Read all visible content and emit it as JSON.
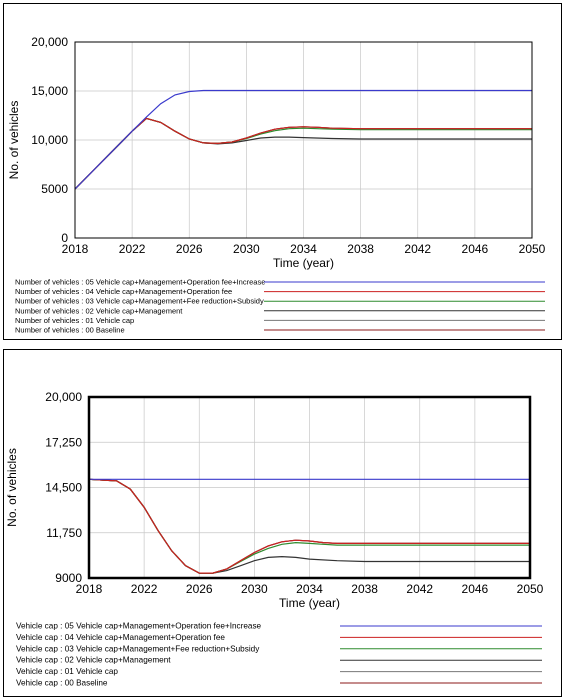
{
  "chart_data": [
    {
      "type": "line",
      "xlabel": "Time (year)",
      "ylabel": "No. of vehicles",
      "xlim": [
        2018,
        2050
      ],
      "ylim": [
        0,
        20000
      ],
      "x_ticks": [
        2018,
        2022,
        2026,
        2030,
        2034,
        2038,
        2042,
        2046,
        2050
      ],
      "y_ticks": [
        {
          "value": 0,
          "label": "0"
        },
        {
          "value": 5000,
          "label": "5000"
        },
        {
          "value": 10000,
          "label": "10,000"
        },
        {
          "value": 15000,
          "label": "15,000"
        },
        {
          "value": 20000,
          "label": "20,000"
        }
      ],
      "grid": true,
      "legend_position": "bottom",
      "series": [
        {
          "name": "Number of vehicles : 05 Vehicle cap+Management+Operation fee+Increase",
          "color": "#3a3acc",
          "points": [
            [
              2018,
              5000
            ],
            [
              2020,
              7950
            ],
            [
              2022,
              10900
            ],
            [
              2023,
              12350
            ],
            [
              2024,
              13700
            ],
            [
              2025,
              14600
            ],
            [
              2026,
              14950
            ],
            [
              2027,
              15050
            ],
            [
              2028,
              15050
            ],
            [
              2050,
              15050
            ]
          ]
        },
        {
          "name": "Number of vehicles : 04 Vehicle cap+Management+Operation fee",
          "color": "#cc2020",
          "points": [
            [
              2018,
              5000
            ],
            [
              2020,
              7950
            ],
            [
              2022,
              10900
            ],
            [
              2023,
              12200
            ],
            [
              2024,
              11800
            ],
            [
              2025,
              10900
            ],
            [
              2026,
              10100
            ],
            [
              2027,
              9700
            ],
            [
              2028,
              9650
            ],
            [
              2029,
              9800
            ],
            [
              2030,
              10200
            ],
            [
              2031,
              10700
            ],
            [
              2032,
              11100
            ],
            [
              2033,
              11300
            ],
            [
              2034,
              11350
            ],
            [
              2035,
              11300
            ],
            [
              2036,
              11200
            ],
            [
              2038,
              11150
            ],
            [
              2050,
              11150
            ]
          ]
        },
        {
          "name": "Number of vehicles : 03 Vehicle cap+Management+Fee reduction+Subsidy",
          "color": "#2e8b2e",
          "points": [
            [
              2018,
              5000
            ],
            [
              2020,
              7950
            ],
            [
              2022,
              10900
            ],
            [
              2023,
              12200
            ],
            [
              2024,
              11800
            ],
            [
              2025,
              10900
            ],
            [
              2026,
              10100
            ],
            [
              2027,
              9700
            ],
            [
              2028,
              9650
            ],
            [
              2029,
              9800
            ],
            [
              2030,
              10150
            ],
            [
              2031,
              10600
            ],
            [
              2032,
              10950
            ],
            [
              2033,
              11150
            ],
            [
              2034,
              11200
            ],
            [
              2035,
              11150
            ],
            [
              2036,
              11100
            ],
            [
              2038,
              11050
            ],
            [
              2050,
              11050
            ]
          ]
        },
        {
          "name": "Number of vehicles : 02 Vehicle cap+Management",
          "color": "#333333",
          "points": [
            [
              2018,
              5000
            ],
            [
              2020,
              7950
            ],
            [
              2022,
              10900
            ],
            [
              2023,
              12200
            ],
            [
              2024,
              11800
            ],
            [
              2025,
              10900
            ],
            [
              2026,
              10100
            ],
            [
              2027,
              9700
            ],
            [
              2028,
              9600
            ],
            [
              2029,
              9700
            ],
            [
              2030,
              9950
            ],
            [
              2031,
              10200
            ],
            [
              2032,
              10300
            ],
            [
              2033,
              10300
            ],
            [
              2034,
              10250
            ],
            [
              2036,
              10150
            ],
            [
              2038,
              10100
            ],
            [
              2050,
              10100
            ]
          ]
        },
        {
          "name": "Number of vehicles : 01 Vehicle cap",
          "color": "#777777",
          "points": [
            [
              2018,
              5000
            ],
            [
              2020,
              7950
            ],
            [
              2022,
              10900
            ],
            [
              2023,
              12200
            ],
            [
              2024,
              11800
            ],
            [
              2025,
              10900
            ],
            [
              2026,
              10100
            ],
            [
              2027,
              9700
            ],
            [
              2028,
              9650
            ],
            [
              2029,
              9800
            ],
            [
              2030,
              10200
            ],
            [
              2031,
              10700
            ],
            [
              2032,
              11100
            ],
            [
              2033,
              11300
            ],
            [
              2034,
              11350
            ],
            [
              2035,
              11300
            ],
            [
              2036,
              11200
            ],
            [
              2038,
              11150
            ],
            [
              2050,
              11150
            ]
          ]
        },
        {
          "name": "Number of vehicles : 00 Baseline",
          "color": "#8b1a1a",
          "points": [
            [
              2018,
              5000
            ],
            [
              2020,
              7950
            ],
            [
              2022,
              10900
            ],
            [
              2023,
              12200
            ],
            [
              2024,
              11800
            ],
            [
              2025,
              10900
            ],
            [
              2026,
              10100
            ],
            [
              2027,
              9700
            ],
            [
              2028,
              9650
            ],
            [
              2029,
              9800
            ],
            [
              2030,
              10200
            ],
            [
              2031,
              10700
            ],
            [
              2032,
              11100
            ],
            [
              2033,
              11300
            ],
            [
              2034,
              11350
            ],
            [
              2035,
              11300
            ],
            [
              2036,
              11200
            ],
            [
              2038,
              11150
            ],
            [
              2050,
              11150
            ]
          ]
        }
      ]
    },
    {
      "type": "line",
      "xlabel": "Time (year)",
      "ylabel": "No. of vehicles",
      "xlim": [
        2018,
        2050
      ],
      "ylim": [
        9000,
        20000
      ],
      "x_ticks": [
        2018,
        2022,
        2026,
        2030,
        2034,
        2038,
        2042,
        2046,
        2050
      ],
      "y_ticks": [
        {
          "value": 9000,
          "label": "9000"
        },
        {
          "value": 11750,
          "label": "11,750"
        },
        {
          "value": 14500,
          "label": "14,500"
        },
        {
          "value": 17250,
          "label": "17,250"
        },
        {
          "value": 20000,
          "label": "20,000"
        }
      ],
      "grid": true,
      "legend_position": "bottom",
      "series": [
        {
          "name": "Vehicle cap : 05 Vehicle cap+Management+Operation fee+Increase",
          "color": "#3a3acc",
          "points": [
            [
              2018,
              15000
            ],
            [
              2050,
              15000
            ]
          ]
        },
        {
          "name": "Vehicle cap : 04 Vehicle cap+Management+Operation fee",
          "color": "#cc2020",
          "points": [
            [
              2018,
              15000
            ],
            [
              2020,
              14900
            ],
            [
              2021,
              14400
            ],
            [
              2022,
              13300
            ],
            [
              2023,
              11900
            ],
            [
              2024,
              10650
            ],
            [
              2025,
              9750
            ],
            [
              2026,
              9300
            ],
            [
              2027,
              9300
            ],
            [
              2028,
              9550
            ],
            [
              2029,
              10050
            ],
            [
              2030,
              10550
            ],
            [
              2031,
              10950
            ],
            [
              2032,
              11200
            ],
            [
              2033,
              11300
            ],
            [
              2034,
              11250
            ],
            [
              2035,
              11150
            ],
            [
              2036,
              11100
            ],
            [
              2038,
              11100
            ],
            [
              2050,
              11100
            ]
          ]
        },
        {
          "name": "Vehicle cap : 03 Vehicle cap+Management+Fee reduction+Subsidy",
          "color": "#2e8b2e",
          "points": [
            [
              2018,
              15000
            ],
            [
              2020,
              14900
            ],
            [
              2021,
              14400
            ],
            [
              2022,
              13300
            ],
            [
              2023,
              11900
            ],
            [
              2024,
              10650
            ],
            [
              2025,
              9750
            ],
            [
              2026,
              9300
            ],
            [
              2027,
              9300
            ],
            [
              2028,
              9550
            ],
            [
              2029,
              10000
            ],
            [
              2030,
              10450
            ],
            [
              2031,
              10800
            ],
            [
              2032,
              11050
            ],
            [
              2033,
              11150
            ],
            [
              2034,
              11100
            ],
            [
              2035,
              11050
            ],
            [
              2036,
              11000
            ],
            [
              2038,
              11000
            ],
            [
              2050,
              11000
            ]
          ]
        },
        {
          "name": "Vehicle cap : 02 Vehicle cap+Management",
          "color": "#333333",
          "points": [
            [
              2018,
              15000
            ],
            [
              2020,
              14900
            ],
            [
              2021,
              14400
            ],
            [
              2022,
              13300
            ],
            [
              2023,
              11900
            ],
            [
              2024,
              10650
            ],
            [
              2025,
              9750
            ],
            [
              2026,
              9300
            ],
            [
              2027,
              9300
            ],
            [
              2028,
              9450
            ],
            [
              2029,
              9750
            ],
            [
              2030,
              10050
            ],
            [
              2031,
              10250
            ],
            [
              2032,
              10300
            ],
            [
              2033,
              10250
            ],
            [
              2034,
              10150
            ],
            [
              2036,
              10050
            ],
            [
              2038,
              10000
            ],
            [
              2050,
              10000
            ]
          ]
        },
        {
          "name": "Vehicle cap : 01 Vehicle cap",
          "color": "#777777",
          "points": [
            [
              2018,
              15000
            ],
            [
              2020,
              14900
            ],
            [
              2021,
              14400
            ],
            [
              2022,
              13300
            ],
            [
              2023,
              11900
            ],
            [
              2024,
              10650
            ],
            [
              2025,
              9750
            ],
            [
              2026,
              9300
            ],
            [
              2027,
              9300
            ],
            [
              2028,
              9550
            ],
            [
              2029,
              10050
            ],
            [
              2030,
              10550
            ],
            [
              2031,
              10950
            ],
            [
              2032,
              11200
            ],
            [
              2033,
              11300
            ],
            [
              2034,
              11250
            ],
            [
              2035,
              11150
            ],
            [
              2036,
              11100
            ],
            [
              2038,
              11100
            ],
            [
              2050,
              11100
            ]
          ]
        },
        {
          "name": "Vehicle cap : 00 Baseline",
          "color": "#8b1a1a",
          "points": [
            [
              2018,
              15000
            ],
            [
              2020,
              14900
            ],
            [
              2021,
              14400
            ],
            [
              2022,
              13300
            ],
            [
              2023,
              11900
            ],
            [
              2024,
              10650
            ],
            [
              2025,
              9750
            ],
            [
              2026,
              9300
            ],
            [
              2027,
              9300
            ],
            [
              2028,
              9550
            ],
            [
              2029,
              10050
            ],
            [
              2030,
              10550
            ],
            [
              2031,
              10950
            ],
            [
              2032,
              11200
            ],
            [
              2033,
              11300
            ],
            [
              2034,
              11250
            ],
            [
              2035,
              11150
            ],
            [
              2036,
              11100
            ],
            [
              2038,
              11100
            ],
            [
              2050,
              11100
            ]
          ]
        }
      ]
    }
  ]
}
